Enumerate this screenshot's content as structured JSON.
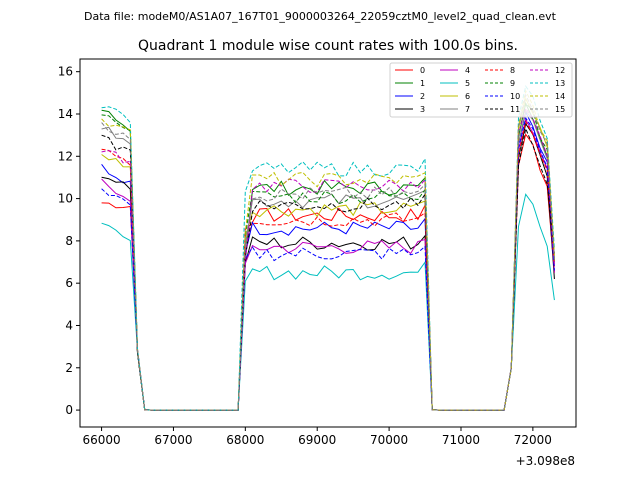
{
  "chart_data": {
    "type": "line",
    "suptitle": "Data file: modeM0/AS1A07_167T01_9000003264_22059cztM0_level2_quad_clean.evt",
    "title": "Quadrant 1 module wise count rates with 100.0s bins.",
    "xlabel": "",
    "ylabel": "",
    "x_offset_label": "+3.098e8",
    "xlim": [
      65700,
      72600
    ],
    "ylim": [
      -0.8,
      16.6
    ],
    "xticks": [
      66000,
      67000,
      68000,
      69000,
      70000,
      71000,
      72000
    ],
    "yticks": [
      0,
      2,
      4,
      6,
      8,
      10,
      12,
      14,
      16
    ],
    "grid": false,
    "legend": {
      "placement": "top-right",
      "columns": 4
    },
    "x": [
      66000,
      66100,
      66200,
      66300,
      66400,
      66500,
      66600,
      66700,
      66800,
      66900,
      67000,
      67100,
      67200,
      67300,
      67400,
      67500,
      67600,
      67700,
      67800,
      67900,
      68000,
      68100,
      68200,
      68300,
      68400,
      68500,
      68600,
      68700,
      68800,
      68900,
      69000,
      69100,
      69200,
      69300,
      69400,
      69500,
      69600,
      69700,
      69800,
      69900,
      70000,
      70100,
      70200,
      70300,
      70400,
      70500,
      70600,
      70700,
      70800,
      70900,
      71000,
      71100,
      71200,
      71300,
      71400,
      71500,
      71600,
      71700,
      71800,
      71900,
      72000,
      72100,
      72200,
      72300
    ],
    "series": [
      {
        "name": "0",
        "color": "#ff0000",
        "dash": false,
        "level": 9.2,
        "start": 9.8,
        "dip": 7.6,
        "pre": 13.0,
        "post": 6.5
      },
      {
        "name": "1",
        "color": "#008000",
        "dash": false,
        "level": 10.5,
        "start": 14.2,
        "dip": 7.2,
        "pre": 14.5,
        "post": 7.0
      },
      {
        "name": "2",
        "color": "#0000ff",
        "dash": false,
        "level": 8.6,
        "start": 11.5,
        "dip": 7.5,
        "pre": 14.0,
        "post": 6.8
      },
      {
        "name": "3",
        "color": "#000000",
        "dash": false,
        "level": 7.9,
        "start": 11.2,
        "dip": 7.0,
        "pre": 13.5,
        "post": 6.2
      },
      {
        "name": "4",
        "color": "#bf00bf",
        "dash": false,
        "level": 7.7,
        "start": 10.8,
        "dip": 6.8,
        "pre": 13.8,
        "post": 6.5
      },
      {
        "name": "5",
        "color": "#00bfbf",
        "dash": false,
        "level": 6.5,
        "start": 8.8,
        "dip": 6.0,
        "pre": 10.2,
        "post": 5.2
      },
      {
        "name": "6",
        "color": "#bfbf00",
        "dash": false,
        "level": 9.5,
        "start": 12.1,
        "dip": 8.2,
        "pre": 14.8,
        "post": 7.0
      },
      {
        "name": "7",
        "color": "#808080",
        "dash": false,
        "level": 9.9,
        "start": 13.4,
        "dip": 7.8,
        "pre": 14.2,
        "post": 7.2
      },
      {
        "name": "8",
        "color": "#ff0000",
        "dash": true,
        "level": 9.0,
        "start": 12.4,
        "dip": 8.6,
        "pre": 13.6,
        "post": 6.8
      },
      {
        "name": "9",
        "color": "#008000",
        "dash": true,
        "level": 10.1,
        "start": 14.0,
        "dip": 8.4,
        "pre": 14.6,
        "post": 7.0
      },
      {
        "name": "10",
        "color": "#0000ff",
        "dash": true,
        "level": 7.4,
        "start": 10.5,
        "dip": 7.1,
        "pre": 13.9,
        "post": 6.6
      },
      {
        "name": "11",
        "color": "#000000",
        "dash": true,
        "level": 9.7,
        "start": 12.9,
        "dip": 7.3,
        "pre": 13.2,
        "post": 7.4
      },
      {
        "name": "12",
        "color": "#bf00bf",
        "dash": true,
        "level": 10.6,
        "start": 12.2,
        "dip": 7.1,
        "pre": 14.4,
        "post": 6.9
      },
      {
        "name": "13",
        "color": "#00bfbf",
        "dash": true,
        "level": 11.4,
        "start": 14.5,
        "dip": 10.2,
        "pre": 15.3,
        "post": 7.6
      },
      {
        "name": "14",
        "color": "#bfbf00",
        "dash": true,
        "level": 10.9,
        "start": 13.8,
        "dip": 8.5,
        "pre": 15.0,
        "post": 7.3
      },
      {
        "name": "15",
        "color": "#808080",
        "dash": true,
        "level": 10.2,
        "start": 13.6,
        "dip": 8.0,
        "pre": 14.9,
        "post": 7.1
      }
    ]
  }
}
